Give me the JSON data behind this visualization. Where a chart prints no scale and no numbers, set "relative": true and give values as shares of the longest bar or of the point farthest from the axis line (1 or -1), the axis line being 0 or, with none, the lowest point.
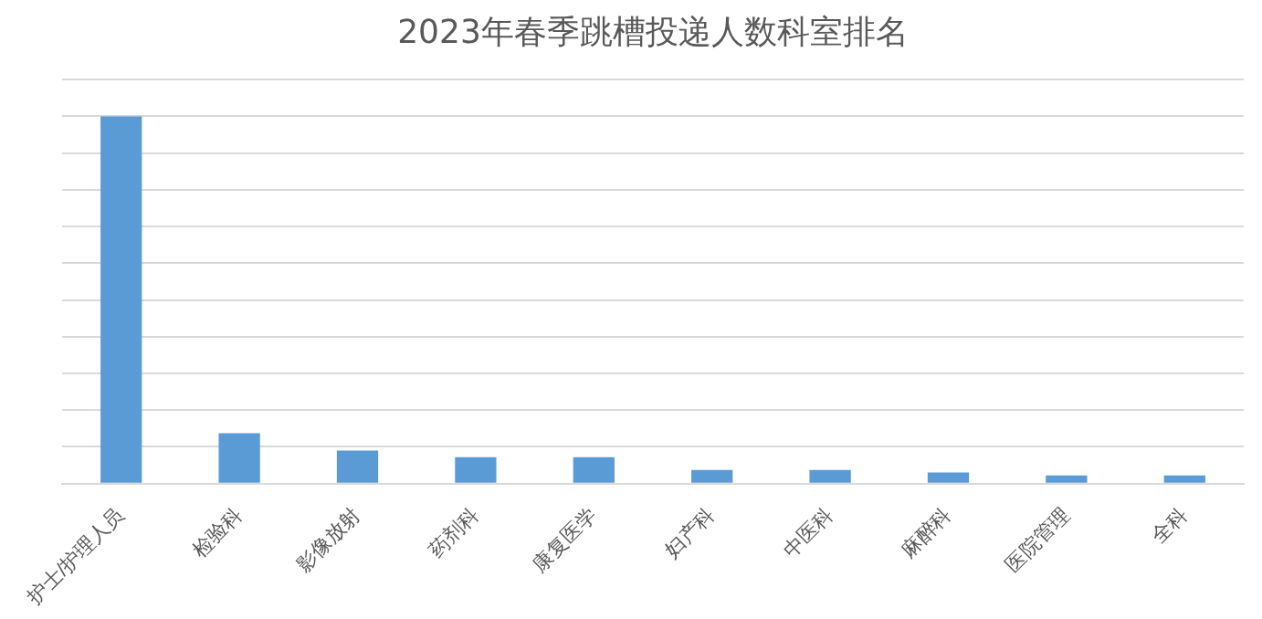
{
  "chart_data": {
    "type": "bar",
    "title": "2023年春季跳槽投递人数科室排名",
    "categories": [
      "护士/护理人员",
      "检验科",
      "影像放射",
      "药剂科",
      "康复医学",
      "妇产科",
      "中医科",
      "麻醉科",
      "医院管理",
      "全科"
    ],
    "values": [
      1,
      0.137,
      0.09,
      0.072,
      0.072,
      0.037,
      0.037,
      0.03,
      0.022,
      0.022
    ],
    "color": "#5b9bd5",
    "relative": true,
    "grid": "y",
    "legend": false
  }
}
